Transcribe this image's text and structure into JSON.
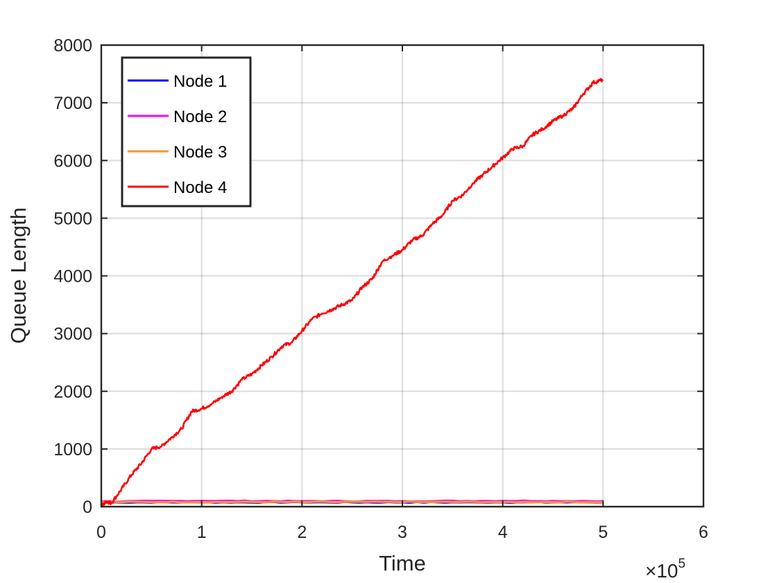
{
  "chart_data": {
    "type": "line",
    "title": "",
    "xlabel": "Time",
    "ylabel": "Queue Length",
    "xlim": [
      0,
      6
    ],
    "ylim": [
      0,
      8000
    ],
    "x_ticks": [
      0,
      1,
      2,
      3,
      4,
      5,
      6
    ],
    "x_tick_labels": [
      "0",
      "1",
      "2",
      "3",
      "4",
      "5",
      "6"
    ],
    "y_ticks": [
      0,
      1000,
      2000,
      3000,
      4000,
      5000,
      6000,
      7000,
      8000
    ],
    "y_tick_labels": [
      "0",
      "1000",
      "2000",
      "3000",
      "4000",
      "5000",
      "6000",
      "7000",
      "8000"
    ],
    "x_exponent_prefix": "×10",
    "x_exponent_power": "5",
    "grid": true,
    "legend_position": "top-left",
    "series": [
      {
        "name": "Node 1",
        "color": "#0000ff",
        "x": [
          0,
          1,
          2,
          3,
          4,
          5
        ],
        "y": [
          75,
          75,
          75,
          75,
          75,
          75
        ]
      },
      {
        "name": "Node 2",
        "color": "#ff00ff",
        "x": [
          0,
          1,
          2,
          3,
          4,
          5
        ],
        "y": [
          90,
          100,
          95,
          95,
          100,
          95
        ]
      },
      {
        "name": "Node 3",
        "color": "#f7962d",
        "x": [
          0,
          1,
          2,
          3,
          4,
          5
        ],
        "y": [
          80,
          80,
          80,
          80,
          80,
          80
        ]
      },
      {
        "name": "Node 4",
        "color": "#ff0000",
        "x": [
          0,
          0.05,
          0.1,
          0.2,
          0.3,
          0.4,
          0.5,
          0.6,
          0.7,
          0.8,
          0.9,
          1.0,
          1.1,
          1.2,
          1.3,
          1.4,
          1.5,
          1.6,
          1.7,
          1.8,
          1.9,
          2.0,
          2.1,
          2.2,
          2.3,
          2.4,
          2.5,
          2.6,
          2.7,
          2.8,
          2.9,
          3.0,
          3.1,
          3.2,
          3.3,
          3.4,
          3.5,
          3.6,
          3.7,
          3.8,
          3.9,
          4.0,
          4.1,
          4.2,
          4.3,
          4.4,
          4.5,
          4.6,
          4.7,
          4.8,
          4.9,
          5.0
        ],
        "y": [
          0,
          90,
          60,
          300,
          550,
          750,
          1000,
          1050,
          1200,
          1350,
          1650,
          1700,
          1780,
          1900,
          2000,
          2200,
          2300,
          2450,
          2600,
          2780,
          2850,
          3050,
          3250,
          3350,
          3420,
          3500,
          3580,
          3800,
          3950,
          4250,
          4350,
          4450,
          4620,
          4700,
          4900,
          5050,
          5300,
          5400,
          5600,
          5750,
          5900,
          6050,
          6200,
          6250,
          6450,
          6550,
          6680,
          6780,
          6900,
          7150,
          7350,
          7400
        ]
      }
    ]
  }
}
